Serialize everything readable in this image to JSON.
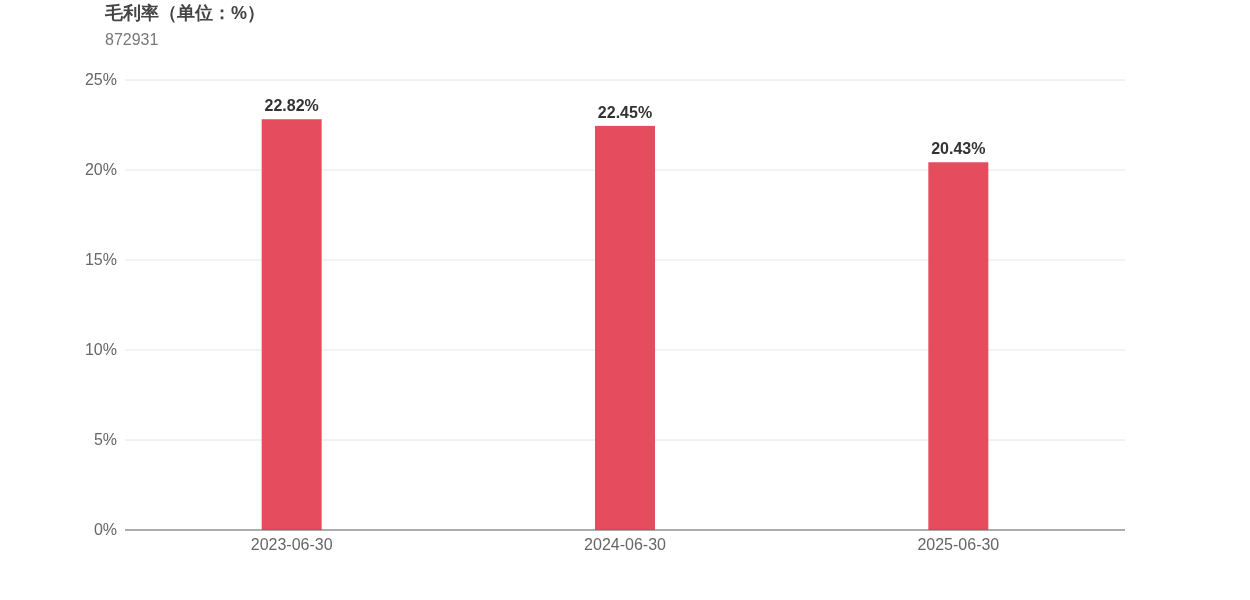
{
  "chart_data": {
    "type": "bar",
    "title": "毛利率（单位：%）",
    "subtitle": "872931",
    "categories": [
      "2023-06-30",
      "2024-06-30",
      "2025-06-30"
    ],
    "values": [
      22.82,
      22.45,
      20.43
    ],
    "value_labels": [
      "22.82%",
      "22.45%",
      "20.43%"
    ],
    "color": "#e54c5e",
    "ylim": [
      0,
      25
    ],
    "yticks": [
      {
        "value": 0,
        "label": "0%"
      },
      {
        "value": 5,
        "label": "5%"
      },
      {
        "value": 10,
        "label": "10%"
      },
      {
        "value": 15,
        "label": "15%"
      },
      {
        "value": 20,
        "label": "20%"
      },
      {
        "value": 25,
        "label": "25%"
      }
    ],
    "grid": "y"
  }
}
